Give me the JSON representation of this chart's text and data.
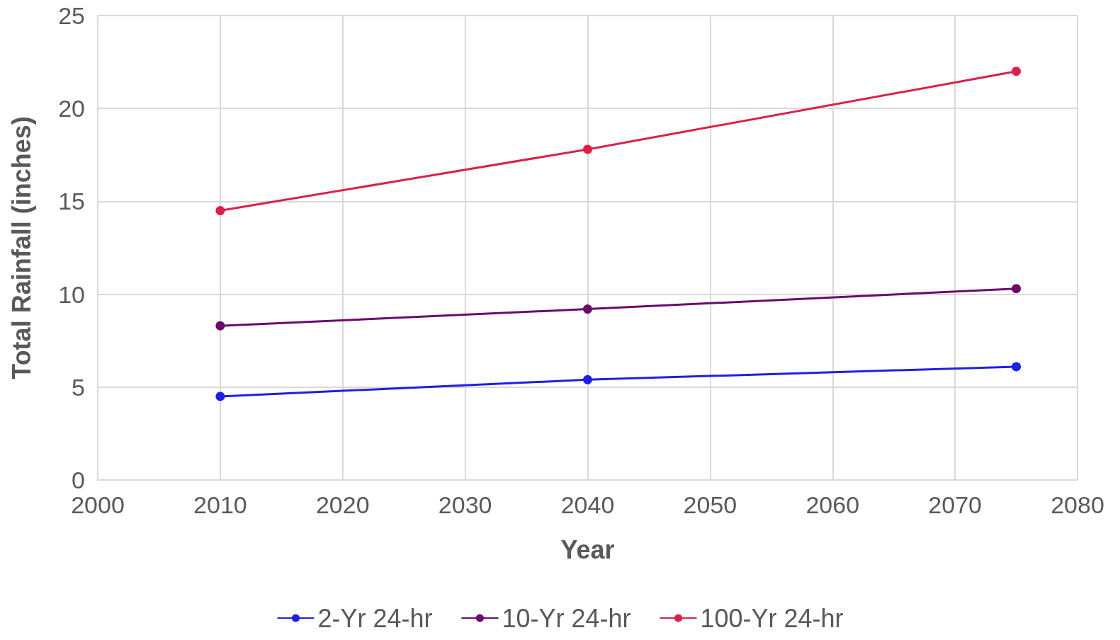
{
  "chart_data": {
    "type": "line",
    "xlabel": "Year",
    "ylabel": "Total Rainfall (inches)",
    "x": [
      2010,
      2040,
      2075
    ],
    "series": [
      {
        "name": "2-Yr 24-hr",
        "color": "#1f1fe6",
        "values": [
          4.5,
          5.4,
          6.1
        ]
      },
      {
        "name": "10-Yr 24-hr",
        "color": "#6b0a6b",
        "values": [
          8.3,
          9.2,
          10.3
        ]
      },
      {
        "name": "100-Yr 24-hr",
        "color": "#d9214a",
        "values": [
          14.5,
          17.8,
          22.0
        ]
      }
    ],
    "xlim": [
      2000,
      2080
    ],
    "xticks": [
      2000,
      2010,
      2020,
      2030,
      2040,
      2050,
      2060,
      2070,
      2080
    ],
    "ylim": [
      0,
      25
    ],
    "yticks": [
      0,
      5,
      10,
      15,
      20,
      25
    ],
    "grid": true,
    "legend": "bottom",
    "marker": "circle",
    "line_style": "solid"
  }
}
